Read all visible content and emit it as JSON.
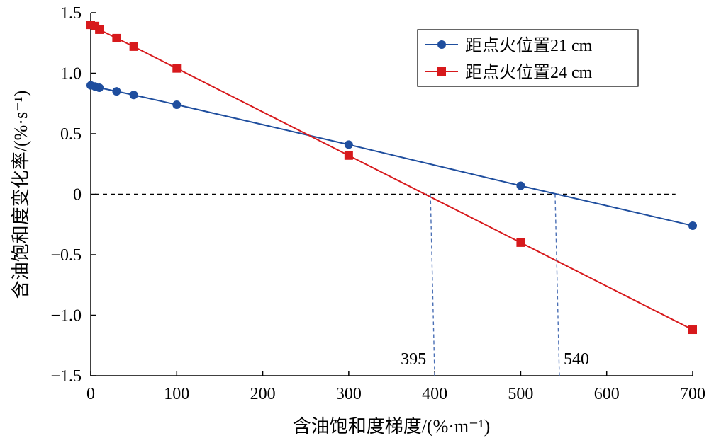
{
  "chart_data": {
    "type": "line",
    "xlabel": "含油饱和度梯度/(%·m⁻¹)",
    "ylabel": "含油饱和度变化率/(%·s⁻¹)",
    "xlim": [
      0,
      700
    ],
    "ylim": [
      -1.5,
      1.5
    ],
    "x_ticks": [
      0,
      100,
      200,
      300,
      400,
      500,
      600,
      700
    ],
    "x_tick_labels": [
      "0",
      "100",
      "200",
      "300",
      "400",
      "500",
      "600",
      "700"
    ],
    "y_ticks": [
      1.5,
      1.0,
      0.5,
      0,
      -0.5,
      -1.0,
      -1.5
    ],
    "y_tick_labels": [
      "1.5",
      "1.0",
      "0.5",
      "0",
      "−0.5",
      "−1.0",
      "−1.5"
    ],
    "grid": false,
    "legend_position": "top-right",
    "series": [
      {
        "name": "距点火位置21 cm",
        "marker": "circle",
        "color": "#1f4e9e",
        "x": [
          0,
          5,
          10,
          30,
          50,
          100,
          300,
          500,
          700
        ],
        "y": [
          0.9,
          0.89,
          0.88,
          0.85,
          0.82,
          0.74,
          0.41,
          0.07,
          -0.26
        ]
      },
      {
        "name": "距点火位置24 cm",
        "marker": "square",
        "color": "#d7191c",
        "x": [
          0,
          5,
          10,
          30,
          50,
          100,
          300,
          500,
          700
        ],
        "y": [
          1.4,
          1.39,
          1.36,
          1.29,
          1.22,
          1.04,
          0.32,
          -0.4,
          -1.12
        ]
      }
    ],
    "reference_line": {
      "y": 0,
      "style": "dashed",
      "color": "#000000"
    },
    "annotations": [
      {
        "label": "395",
        "x": 395,
        "color": "#4a6fb5"
      },
      {
        "label": "540",
        "x": 540,
        "color": "#4a6fb5"
      }
    ]
  }
}
